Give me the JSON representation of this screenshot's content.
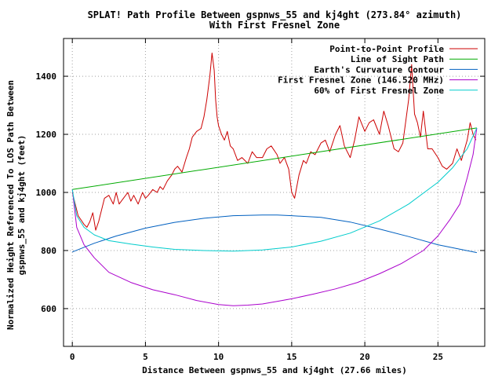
{
  "chart_data": {
    "type": "line",
    "title": "SPLAT! Path Profile Between gspnws_55 and kj4ght (273.84° azimuth)",
    "subtitle": "With First Fresnel Zone",
    "xlabel": "Distance Between gspnws_55 and kj4ght (27.66 miles)",
    "ylabel_line1": "Normalized Height Referenced To LOS Path Between",
    "ylabel_line2": "gspnws_55 and kj4ght (feet)",
    "xlim": [
      -0.6,
      28.2
    ],
    "ylim": [
      470,
      1530
    ],
    "x_ticks": [
      0,
      5,
      10,
      15,
      20,
      25
    ],
    "y_ticks": [
      600,
      800,
      1000,
      1200,
      1400
    ],
    "grid": true,
    "legend_position": "top-right",
    "series": [
      {
        "name": "Point-to-Point Profile",
        "color": "#cc0000",
        "x": [
          0,
          0.2,
          0.4,
          0.6,
          0.8,
          1.0,
          1.2,
          1.4,
          1.6,
          1.8,
          2.0,
          2.2,
          2.5,
          2.8,
          3.0,
          3.2,
          3.5,
          3.8,
          4.0,
          4.2,
          4.5,
          4.8,
          5.0,
          5.2,
          5.5,
          5.8,
          6.0,
          6.2,
          6.5,
          6.8,
          7.0,
          7.2,
          7.5,
          7.8,
          8.0,
          8.2,
          8.5,
          8.8,
          9.0,
          9.2,
          9.4,
          9.55,
          9.7,
          9.8,
          9.9,
          10.0,
          10.2,
          10.4,
          10.6,
          10.8,
          11.0,
          11.3,
          11.6,
          12.0,
          12.3,
          12.6,
          13.0,
          13.3,
          13.6,
          14.0,
          14.2,
          14.5,
          14.8,
          15.0,
          15.2,
          15.5,
          15.8,
          16.0,
          16.3,
          16.6,
          17.0,
          17.3,
          17.6,
          18.0,
          18.3,
          18.6,
          19.0,
          19.3,
          19.6,
          20.0,
          20.3,
          20.6,
          21.0,
          21.3,
          21.6,
          22.0,
          22.3,
          22.6,
          23.0,
          23.2,
          23.4,
          23.6,
          23.8,
          24.0,
          24.3,
          24.6,
          25.0,
          25.3,
          25.6,
          26.0,
          26.3,
          26.6,
          27.0,
          27.2,
          27.4,
          27.6
        ],
        "y": [
          1000,
          960,
          920,
          905,
          890,
          880,
          900,
          930,
          870,
          900,
          940,
          980,
          990,
          960,
          1000,
          960,
          980,
          1000,
          970,
          990,
          960,
          1000,
          980,
          990,
          1010,
          1000,
          1020,
          1010,
          1040,
          1060,
          1080,
          1090,
          1070,
          1120,
          1150,
          1190,
          1210,
          1220,
          1260,
          1320,
          1400,
          1480,
          1420,
          1320,
          1260,
          1230,
          1200,
          1180,
          1210,
          1160,
          1150,
          1110,
          1120,
          1100,
          1140,
          1120,
          1120,
          1150,
          1160,
          1130,
          1100,
          1120,
          1080,
          1000,
          980,
          1060,
          1110,
          1100,
          1140,
          1130,
          1170,
          1180,
          1140,
          1200,
          1230,
          1160,
          1120,
          1180,
          1260,
          1210,
          1240,
          1250,
          1200,
          1280,
          1230,
          1150,
          1140,
          1170,
          1320,
          1440,
          1270,
          1240,
          1190,
          1280,
          1150,
          1150,
          1120,
          1090,
          1080,
          1100,
          1150,
          1110,
          1180,
          1240,
          1200,
          1180
        ]
      },
      {
        "name": "Line of Sight Path",
        "color": "#00aa00",
        "x": [
          0,
          27.66
        ],
        "y": [
          1010,
          1222
        ]
      },
      {
        "name": "Earth's Curvature Contour",
        "color": "#0060c0",
        "x": [
          0,
          1.5,
          3,
          5,
          7,
          9,
          11,
          13,
          14,
          15,
          17,
          19,
          21,
          23,
          25,
          27.66
        ],
        "y": [
          795,
          825,
          850,
          877,
          897,
          911,
          920,
          922,
          922,
          920,
          914,
          898,
          874,
          848,
          820,
          793
        ]
      },
      {
        "name": "First Fresnel Zone (146.520 MHz)",
        "color": "#aa00cc",
        "x": [
          0,
          0.3,
          0.8,
          1.5,
          2.5,
          4,
          5.5,
          7,
          8.5,
          10,
          11,
          12,
          13,
          14,
          15,
          16.5,
          18,
          19.5,
          21,
          22.5,
          24,
          25,
          25.8,
          26.5,
          27,
          27.4,
          27.66
        ],
        "y": [
          1010,
          880,
          820,
          775,
          725,
          690,
          665,
          648,
          628,
          614,
          610,
          612,
          616,
          625,
          634,
          650,
          668,
          690,
          720,
          755,
          800,
          850,
          905,
          960,
          1050,
          1130,
          1222
        ]
      },
      {
        "name": "60% of First Fresnel Zone",
        "color": "#00cccc",
        "x": [
          0,
          0.3,
          0.8,
          1.5,
          2.5,
          4,
          5.5,
          7,
          9,
          11,
          13,
          15,
          17,
          19,
          21,
          23,
          25,
          26,
          27,
          27.66
        ],
        "y": [
          1010,
          920,
          880,
          854,
          834,
          822,
          812,
          804,
          800,
          798,
          802,
          812,
          832,
          860,
          902,
          960,
          1035,
          1085,
          1150,
          1222
        ]
      }
    ]
  }
}
